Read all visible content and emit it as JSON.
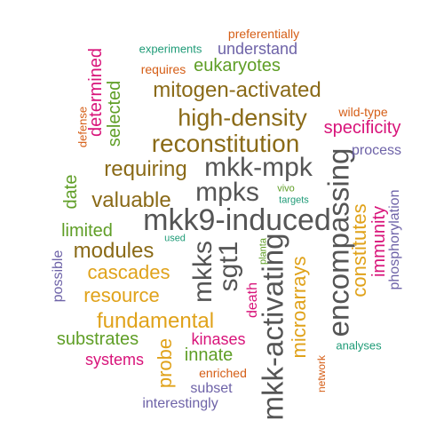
{
  "colors": {
    "gray": "#555555",
    "brown": "#8a6a17",
    "gold": "#e0a21a",
    "green": "#5f9e26",
    "teal": "#1f9b77",
    "orange": "#d55e16",
    "magenta": "#d8147a",
    "purple": "#6e63a8"
  },
  "words": [
    {
      "text": "mkk9-induced",
      "color": "gray"
    },
    {
      "text": "mkk-activating",
      "color": "gray"
    },
    {
      "text": "encompassing",
      "color": "gray"
    },
    {
      "text": "mkk-mpk",
      "color": "gray"
    },
    {
      "text": "mpks",
      "color": "gray"
    },
    {
      "text": "mkks",
      "color": "gray"
    },
    {
      "text": "sgt1",
      "color": "gray"
    },
    {
      "text": "reconstitution",
      "color": "brown"
    },
    {
      "text": "high-density",
      "color": "brown"
    },
    {
      "text": "mitogen-activated",
      "color": "brown"
    },
    {
      "text": "requiring",
      "color": "brown"
    },
    {
      "text": "valuable",
      "color": "brown"
    },
    {
      "text": "modules",
      "color": "brown"
    },
    {
      "text": "cascades",
      "color": "gold"
    },
    {
      "text": "resource",
      "color": "gold"
    },
    {
      "text": "fundamental",
      "color": "gold"
    },
    {
      "text": "microarrays",
      "color": "gold"
    },
    {
      "text": "constitutes",
      "color": "gold"
    },
    {
      "text": "probe",
      "color": "gold"
    },
    {
      "text": "eukaryotes",
      "color": "green"
    },
    {
      "text": "selected",
      "color": "green"
    },
    {
      "text": "date",
      "color": "green"
    },
    {
      "text": "limited",
      "color": "green"
    },
    {
      "text": "substrates",
      "color": "green"
    },
    {
      "text": "innate",
      "color": "green"
    },
    {
      "text": "planta",
      "color": "green"
    },
    {
      "text": "vivo",
      "color": "green"
    },
    {
      "text": "experiments",
      "color": "teal"
    },
    {
      "text": "targets",
      "color": "teal"
    },
    {
      "text": "used",
      "color": "teal"
    },
    {
      "text": "analyses",
      "color": "teal"
    },
    {
      "text": "preferentially",
      "color": "orange"
    },
    {
      "text": "requires",
      "color": "orange"
    },
    {
      "text": "defense",
      "color": "orange"
    },
    {
      "text": "wild-type",
      "color": "orange"
    },
    {
      "text": "enriched",
      "color": "orange"
    },
    {
      "text": "network",
      "color": "orange"
    },
    {
      "text": "determined",
      "color": "magenta"
    },
    {
      "text": "specificity",
      "color": "magenta"
    },
    {
      "text": "immunity",
      "color": "magenta"
    },
    {
      "text": "death",
      "color": "magenta"
    },
    {
      "text": "kinases",
      "color": "magenta"
    },
    {
      "text": "systems",
      "color": "magenta"
    },
    {
      "text": "understand",
      "color": "purple"
    },
    {
      "text": "process",
      "color": "purple"
    },
    {
      "text": "phosphorylation",
      "color": "purple"
    },
    {
      "text": "possible",
      "color": "purple"
    },
    {
      "text": "subset",
      "color": "purple"
    },
    {
      "text": "interestingly",
      "color": "purple"
    }
  ]
}
